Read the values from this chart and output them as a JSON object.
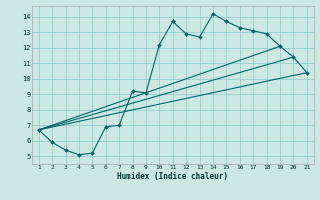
{
  "xlabel": "Humidex (Indice chaleur)",
  "bg_color": "#cce8e4",
  "grid_color": "#88cccc",
  "line_color": "#006666",
  "x_ticks": [
    1,
    2,
    3,
    4,
    5,
    6,
    7,
    8,
    9,
    10,
    11,
    12,
    13,
    14,
    15,
    16,
    17,
    18,
    19,
    20,
    21
  ],
  "y_ticks": [
    5,
    6,
    7,
    8,
    9,
    10,
    11,
    12,
    13,
    14
  ],
  "xlim": [
    0.5,
    21.5
  ],
  "ylim": [
    4.5,
    14.7
  ],
  "curve_x": [
    1,
    2,
    3,
    4,
    5,
    6,
    7,
    8,
    9,
    10,
    11,
    12,
    13,
    14,
    15,
    16,
    17,
    18,
    19,
    20,
    21
  ],
  "curve_y": [
    6.7,
    5.9,
    5.4,
    5.1,
    5.2,
    6.9,
    7.0,
    9.2,
    9.1,
    12.2,
    13.7,
    12.9,
    12.7,
    14.2,
    13.7,
    13.3,
    13.1,
    12.9,
    12.1,
    11.4,
    10.4
  ],
  "line1_x": [
    1,
    21
  ],
  "line1_y": [
    6.7,
    10.4
  ],
  "line2_x": [
    1,
    20
  ],
  "line2_y": [
    6.7,
    11.4
  ],
  "line3_x": [
    1,
    19
  ],
  "line3_y": [
    6.7,
    12.1
  ]
}
